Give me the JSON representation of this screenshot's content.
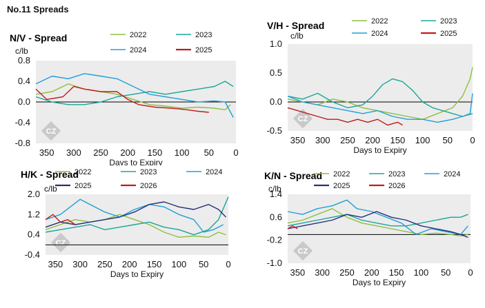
{
  "page": {
    "title": "No.11 Spreads"
  },
  "logo": {
    "text": "CZ"
  },
  "colors": {
    "2022": "#8cbf3f",
    "2023": "#1aa59a",
    "2024": "#1f9fd8",
    "2025": "#c21a1a",
    "2025_navy": "#22307a",
    "2026": "#c21a1a",
    "plot_bg": "#ececec"
  },
  "chart_data": [
    {
      "id": "nv",
      "type": "line",
      "title": "N/V - Spread",
      "unit": "c/lb",
      "xlabel": "Days to Expiry",
      "x_reversed": true,
      "xlim": [
        370,
        0
      ],
      "ylim": [
        -0.8,
        0.8
      ],
      "xticks": [
        350,
        300,
        250,
        200,
        150,
        100,
        50,
        0
      ],
      "yticks": [
        "0.8",
        "0.4",
        "0.0",
        "-0.4",
        "-0.8"
      ],
      "legend": [
        "2022",
        "2023",
        "2024",
        "2025"
      ],
      "series": [
        {
          "name": "2022",
          "color": "#8cbf3f",
          "x": [
            370,
            340,
            310,
            280,
            250,
            220,
            190,
            160,
            130,
            100,
            70,
            40,
            20,
            10
          ],
          "y": [
            0.15,
            0.2,
            0.35,
            0.25,
            0.2,
            0.15,
            0.05,
            -0.05,
            -0.08,
            -0.12,
            -0.1,
            -0.12,
            -0.15,
            -0.05
          ]
        },
        {
          "name": "2023",
          "color": "#1aa59a",
          "x": [
            370,
            340,
            310,
            280,
            250,
            220,
            190,
            160,
            130,
            100,
            70,
            40,
            20,
            5
          ],
          "y": [
            0.1,
            0.0,
            -0.05,
            -0.05,
            0.0,
            0.1,
            0.15,
            0.2,
            0.15,
            0.2,
            0.25,
            0.3,
            0.4,
            0.3
          ]
        },
        {
          "name": "2024",
          "color": "#1f9fd8",
          "x": [
            370,
            340,
            310,
            280,
            250,
            220,
            190,
            160,
            130,
            100,
            70,
            40,
            20,
            5
          ],
          "y": [
            0.35,
            0.5,
            0.45,
            0.55,
            0.5,
            0.45,
            0.3,
            0.15,
            0.1,
            0.05,
            0.0,
            0.02,
            0.0,
            -0.3
          ]
        },
        {
          "name": "2025",
          "color": "#c21a1a",
          "x": [
            370,
            350,
            320,
            300,
            280,
            250,
            220,
            200,
            180,
            150,
            120,
            90,
            70,
            50
          ],
          "y": [
            0.25,
            0.05,
            0.1,
            0.3,
            0.25,
            0.2,
            0.2,
            0.05,
            -0.05,
            -0.1,
            -0.12,
            -0.15,
            -0.18,
            -0.2
          ]
        }
      ]
    },
    {
      "id": "vh",
      "type": "line",
      "title": "V/H - Spread",
      "unit": "c/lb",
      "xlabel": "Days to Expiry",
      "x_reversed": true,
      "xlim": [
        370,
        0
      ],
      "ylim": [
        -0.5,
        1.0
      ],
      "xticks": [
        350,
        300,
        250,
        200,
        150,
        100,
        50,
        0
      ],
      "yticks": [
        "1.0",
        "0.5",
        "0.0",
        "-0.5"
      ],
      "legend": [
        "2022",
        "2023",
        "2024",
        "2025"
      ],
      "series": [
        {
          "name": "2022",
          "color": "#8cbf3f",
          "x": [
            370,
            340,
            310,
            280,
            250,
            220,
            190,
            160,
            130,
            100,
            70,
            40,
            20,
            5,
            0
          ],
          "y": [
            0.05,
            0.0,
            -0.05,
            0.05,
            0.0,
            -0.1,
            -0.15,
            -0.2,
            -0.25,
            -0.3,
            -0.2,
            -0.1,
            0.1,
            0.4,
            0.6
          ]
        },
        {
          "name": "2023",
          "color": "#1aa59a",
          "x": [
            370,
            340,
            310,
            280,
            250,
            220,
            200,
            180,
            160,
            140,
            120,
            100,
            80,
            60,
            40,
            20,
            0
          ],
          "y": [
            0.1,
            0.05,
            0.15,
            0.0,
            -0.1,
            -0.05,
            0.1,
            0.3,
            0.4,
            0.35,
            0.2,
            0.0,
            -0.1,
            -0.15,
            -0.2,
            -0.25,
            -0.2
          ]
        },
        {
          "name": "2024",
          "color": "#1f9fd8",
          "x": [
            370,
            340,
            310,
            280,
            250,
            220,
            190,
            160,
            130,
            100,
            70,
            40,
            20,
            5,
            0
          ],
          "y": [
            0.1,
            0.0,
            -0.05,
            -0.1,
            -0.15,
            -0.2,
            -0.15,
            -0.25,
            -0.3,
            -0.3,
            -0.35,
            -0.3,
            -0.25,
            -0.2,
            0.15
          ]
        },
        {
          "name": "2025",
          "color": "#c21a1a",
          "x": [
            370,
            350,
            330,
            310,
            290,
            270,
            250,
            230,
            210,
            190,
            170,
            150,
            140
          ],
          "y": [
            -0.1,
            -0.15,
            -0.2,
            -0.25,
            -0.3,
            -0.3,
            -0.35,
            -0.3,
            -0.35,
            -0.3,
            -0.4,
            -0.35,
            -0.4
          ]
        }
      ]
    },
    {
      "id": "hk",
      "type": "line",
      "title": "H/K - Spread",
      "unit": "c/lb",
      "xlabel": "Days to Expiry",
      "x_reversed": true,
      "xlim": [
        370,
        0
      ],
      "ylim": [
        -0.4,
        2.0
      ],
      "xticks": [
        350,
        300,
        250,
        200,
        150,
        100,
        50,
        0
      ],
      "yticks": [
        "2.0",
        "1.2",
        "0.4",
        "-0.4"
      ],
      "legend": [
        "2022",
        "2023",
        "2024",
        "2025",
        "2026"
      ],
      "series": [
        {
          "name": "2022",
          "color": "#8cbf3f",
          "x": [
            370,
            340,
            310,
            280,
            250,
            220,
            190,
            160,
            130,
            100,
            70,
            40,
            20,
            5
          ],
          "y": [
            0.6,
            0.8,
            1.0,
            0.9,
            1.0,
            1.2,
            1.0,
            0.8,
            0.5,
            0.3,
            0.35,
            0.3,
            0.5,
            0.4
          ]
        },
        {
          "name": "2023",
          "color": "#1aa59a",
          "x": [
            370,
            340,
            310,
            280,
            250,
            220,
            190,
            160,
            130,
            100,
            70,
            40,
            20,
            0
          ],
          "y": [
            0.5,
            0.6,
            0.7,
            0.8,
            0.6,
            0.7,
            0.8,
            0.9,
            0.7,
            0.6,
            0.4,
            0.6,
            1.0,
            1.9
          ]
        },
        {
          "name": "2024",
          "color": "#1f9fd8",
          "x": [
            370,
            340,
            320,
            300,
            280,
            250,
            220,
            190,
            160,
            130,
            100,
            70,
            50,
            30,
            10
          ],
          "y": [
            1.0,
            1.2,
            1.5,
            1.8,
            1.6,
            1.3,
            1.1,
            1.4,
            1.6,
            1.5,
            1.2,
            1.0,
            0.5,
            0.6,
            0.8
          ]
        },
        {
          "name": "2025",
          "color": "#22307a",
          "x": [
            370,
            340,
            310,
            280,
            250,
            220,
            190,
            160,
            130,
            100,
            70,
            40,
            20,
            5
          ],
          "y": [
            0.7,
            0.9,
            0.8,
            0.9,
            1.0,
            1.1,
            1.3,
            1.6,
            1.7,
            1.5,
            1.4,
            1.6,
            1.4,
            1.1
          ]
        },
        {
          "name": "2026",
          "color": "#c21a1a",
          "x": [
            370,
            355,
            340,
            325,
            310
          ],
          "y": [
            1.0,
            1.2,
            0.9,
            1.0,
            0.8
          ]
        }
      ]
    },
    {
      "id": "kn",
      "type": "line",
      "title": "K/N - Spread",
      "unit": "c/lb",
      "xlabel": "Days to Expiry",
      "x_reversed": true,
      "xlim": [
        370,
        0
      ],
      "ylim": [
        -1.0,
        1.4
      ],
      "xticks": [
        350,
        300,
        250,
        200,
        150,
        100,
        50,
        0
      ],
      "yticks": [
        "1.4",
        "0.6",
        "-0.2",
        "-1.0"
      ],
      "legend": [
        "2022",
        "2023",
        "2024",
        "2025",
        "2026"
      ],
      "series": [
        {
          "name": "2022",
          "color": "#8cbf3f",
          "x": [
            370,
            340,
            310,
            280,
            250,
            220,
            190,
            160,
            130,
            100,
            70,
            40,
            20,
            5
          ],
          "y": [
            0.4,
            0.5,
            0.7,
            0.9,
            0.6,
            0.4,
            0.3,
            0.2,
            0.1,
            0.0,
            0.05,
            0.0,
            -0.05,
            0.0
          ]
        },
        {
          "name": "2023",
          "color": "#1aa59a",
          "x": [
            370,
            340,
            310,
            280,
            250,
            220,
            190,
            160,
            130,
            100,
            70,
            40,
            20,
            5
          ],
          "y": [
            0.3,
            0.4,
            0.5,
            0.6,
            0.7,
            0.5,
            0.4,
            0.3,
            0.3,
            0.4,
            0.5,
            0.6,
            0.6,
            0.7
          ]
        },
        {
          "name": "2024",
          "color": "#1f9fd8",
          "x": [
            370,
            340,
            310,
            280,
            250,
            230,
            200,
            170,
            140,
            110,
            80,
            50,
            20,
            5
          ],
          "y": [
            0.8,
            0.7,
            0.9,
            1.0,
            1.2,
            0.9,
            0.8,
            0.6,
            0.4,
            0.0,
            0.2,
            0.1,
            0.0,
            0.3
          ]
        },
        {
          "name": "2025",
          "color": "#22307a",
          "x": [
            370,
            340,
            310,
            280,
            250,
            220,
            190,
            160,
            130,
            100,
            70,
            40,
            20,
            5
          ],
          "y": [
            0.2,
            0.3,
            0.4,
            0.5,
            0.7,
            0.6,
            0.8,
            0.6,
            0.5,
            0.3,
            0.2,
            0.1,
            0.0,
            -0.1
          ]
        },
        {
          "name": "2026",
          "color": "#c21a1a",
          "x": [
            370,
            360,
            350
          ],
          "y": [
            0.2,
            0.3,
            0.2
          ]
        }
      ]
    }
  ]
}
